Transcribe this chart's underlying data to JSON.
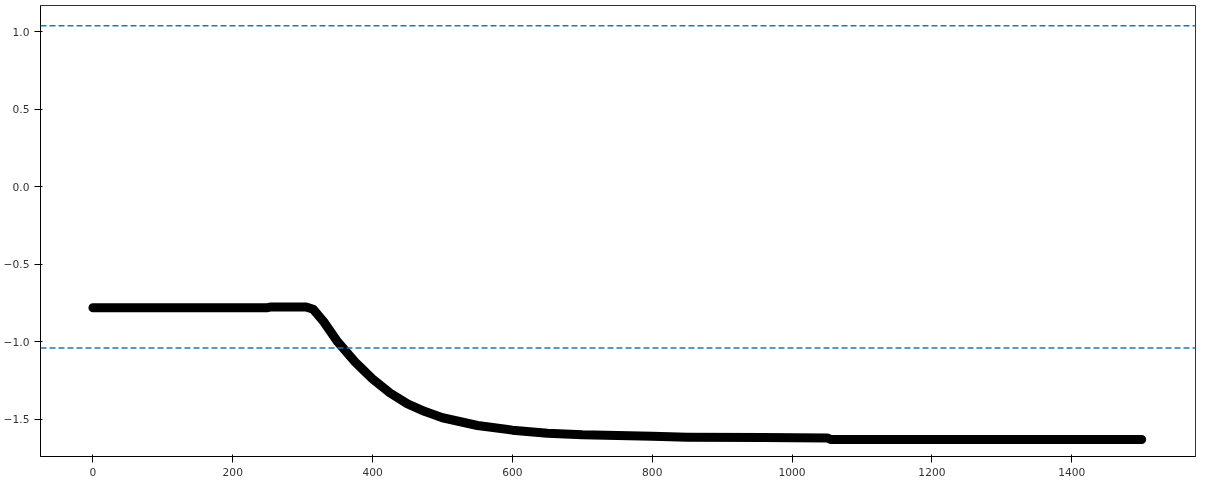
{
  "chart_data": {
    "type": "line",
    "x": [
      0,
      250,
      255,
      305,
      315,
      330,
      350,
      375,
      400,
      425,
      450,
      475,
      500,
      550,
      600,
      650,
      700,
      800,
      850,
      1050,
      1055,
      1500
    ],
    "series": [
      {
        "color": "#000000",
        "values": [
          -0.78,
          -0.78,
          -0.775,
          -0.775,
          -0.79,
          -0.87,
          -1.0,
          -1.13,
          -1.24,
          -1.33,
          -1.4,
          -1.45,
          -1.49,
          -1.54,
          -1.57,
          -1.59,
          -1.6,
          -1.61,
          -1.615,
          -1.62,
          -1.63,
          -1.63
        ]
      }
    ],
    "xlim": [
      -75,
      1577
    ],
    "ylim": [
      -1.74,
      1.17
    ],
    "xticks": [
      0,
      200,
      400,
      600,
      800,
      1000,
      1200,
      1400
    ],
    "yticks": [
      {
        "value": -1.5,
        "label": "−1.5"
      },
      {
        "value": -1.0,
        "label": "−1.0"
      },
      {
        "value": -0.5,
        "label": "−0.5"
      },
      {
        "value": 0.0,
        "label": "0.0"
      },
      {
        "value": 0.5,
        "label": "0.5"
      },
      {
        "value": 1.0,
        "label": "1.0"
      }
    ],
    "ref_lines": [
      {
        "axis": "y",
        "value": 1.04,
        "color": "#1f77b4",
        "line_style": "dashed"
      },
      {
        "axis": "y",
        "value": -1.04,
        "color": "#1f77b4",
        "line_style": "dashed"
      }
    ],
    "grid": false,
    "line_style": "solid"
  }
}
